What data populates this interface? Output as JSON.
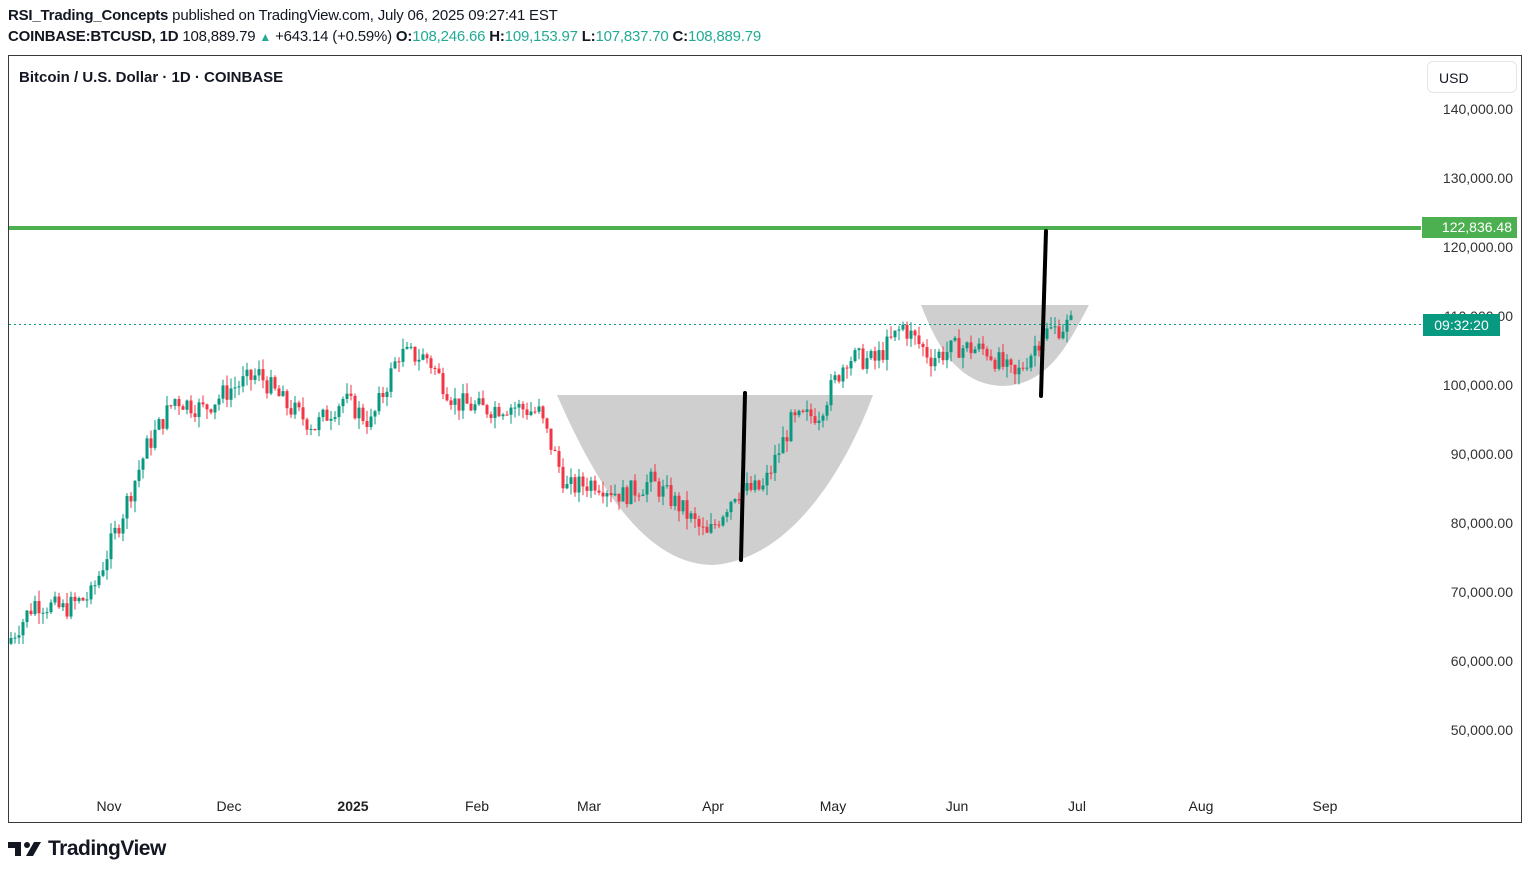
{
  "header": {
    "author": "RSI_Trading_Concepts",
    "published": "published on TradingView.com, July 06, 2025 09:27:41 EST",
    "symbol": "COINBASE:BTCUSD, 1D",
    "last": "108,889.79",
    "change": "+643.14 (+0.59%)",
    "o_label": "O:",
    "o": "108,246.66",
    "h_label": "H:",
    "h": "109,153.97",
    "l_label": "L:",
    "l": "107,837.70",
    "c_label": "C:",
    "c": "108,889.79",
    "arrow": "▲"
  },
  "chart": {
    "title": "Bitcoin / U.S. Dollar · 1D · COINBASE",
    "currency": "USD",
    "level_label": "122,836.48",
    "countdown": "09:32:20",
    "logo_text": "TradingView"
  },
  "colors": {
    "up": "#089981",
    "down": "#f23645",
    "level": "#4caf50",
    "pattern_fill": "#cccccc",
    "projection": "#000000"
  },
  "chart_data": {
    "type": "candlestick",
    "title": "Bitcoin / U.S. Dollar · 1D · COINBASE",
    "xlabel": "",
    "ylabel": "USD",
    "y_ticks": [
      "140,000.00",
      "130,000.00",
      "120,000.00",
      "110,000.00",
      "100,000.00",
      "90,000.00",
      "80,000.00",
      "70,000.00",
      "60,000.00",
      "50,000.00"
    ],
    "ylim": [
      40000,
      144000
    ],
    "x_ticks": [
      "Nov",
      "Dec",
      "2025",
      "Feb",
      "Mar",
      "Apr",
      "May",
      "Jun",
      "Jul",
      "Aug",
      "Sep"
    ],
    "grid": false,
    "last_price": 108889.79,
    "horizontal_levels": [
      {
        "price": 122836.48,
        "label": "122,836.48",
        "color": "#4caf50"
      }
    ],
    "annotations": [
      {
        "type": "cup",
        "from": "2025-02-22",
        "to": "2025-05-08",
        "rim": 98500,
        "bottom": 74500,
        "note": "large cup (gray rounded fill)"
      },
      {
        "type": "handle_cup",
        "from": "2025-05-22",
        "to": "2025-07-05",
        "rim": 111500,
        "bottom": 100000,
        "note": "smaller cup (gray rounded fill)"
      },
      {
        "type": "projection_line",
        "date": "2025-04-08",
        "from": 74500,
        "to": 98500,
        "note": "cup depth measure"
      },
      {
        "type": "projection_line",
        "date": "2025-06-22",
        "from": 98500,
        "to": 122836,
        "note": "measured move target"
      }
    ],
    "x_start": "2024-10-12",
    "closes_weekly_approx": [
      {
        "date": "2024-10-12",
        "close": 62500
      },
      {
        "date": "2024-10-19",
        "close": 68500
      },
      {
        "date": "2024-10-26",
        "close": 67500
      },
      {
        "date": "2024-11-02",
        "close": 69500
      },
      {
        "date": "2024-11-09",
        "close": 80000
      },
      {
        "date": "2024-11-16",
        "close": 91000
      },
      {
        "date": "2024-11-23",
        "close": 98000
      },
      {
        "date": "2024-11-30",
        "close": 96500
      },
      {
        "date": "2024-12-07",
        "close": 99500
      },
      {
        "date": "2024-12-14",
        "close": 101500
      },
      {
        "date": "2024-12-21",
        "close": 97000
      },
      {
        "date": "2024-12-28",
        "close": 94000
      },
      {
        "date": "2025-01-04",
        "close": 98000
      },
      {
        "date": "2025-01-11",
        "close": 94500
      },
      {
        "date": "2025-01-18",
        "close": 104500
      },
      {
        "date": "2025-01-25",
        "close": 104000
      },
      {
        "date": "2025-02-01",
        "close": 97500
      },
      {
        "date": "2025-02-08",
        "close": 96500
      },
      {
        "date": "2025-02-15",
        "close": 97000
      },
      {
        "date": "2025-02-22",
        "close": 96000
      },
      {
        "date": "2025-03-01",
        "close": 85000
      },
      {
        "date": "2025-03-08",
        "close": 86000
      },
      {
        "date": "2025-03-15",
        "close": 84000
      },
      {
        "date": "2025-03-22",
        "close": 86000
      },
      {
        "date": "2025-03-29",
        "close": 82500
      },
      {
        "date": "2025-04-05",
        "close": 78000
      },
      {
        "date": "2025-04-12",
        "close": 84500
      },
      {
        "date": "2025-04-19",
        "close": 85000
      },
      {
        "date": "2025-04-26",
        "close": 94500
      },
      {
        "date": "2025-05-03",
        "close": 96000
      },
      {
        "date": "2025-05-10",
        "close": 104000
      },
      {
        "date": "2025-05-17",
        "close": 103500
      },
      {
        "date": "2025-05-24",
        "close": 108500
      },
      {
        "date": "2025-05-31",
        "close": 104000
      },
      {
        "date": "2025-06-07",
        "close": 105500
      },
      {
        "date": "2025-06-14",
        "close": 105000
      },
      {
        "date": "2025-06-21",
        "close": 101000
      },
      {
        "date": "2025-06-28",
        "close": 107500
      },
      {
        "date": "2025-07-05",
        "close": 108889.79
      }
    ]
  }
}
